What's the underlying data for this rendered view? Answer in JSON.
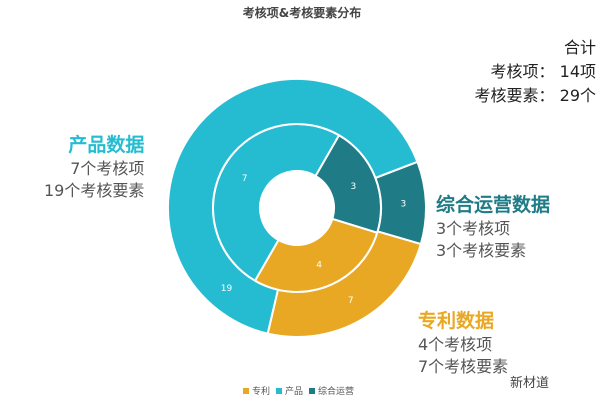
{
  "chart_data": {
    "type": "pie",
    "title": "考核项&考核要素分布",
    "categories": [
      "综合运营",
      "专利",
      "产品"
    ],
    "colors": {
      "综合运营": "#1f7c87",
      "专利": "#e9a824",
      "产品": "#25bcd2"
    },
    "series": [
      {
        "name": "考核项",
        "ring": "inner",
        "values": [
          3,
          4,
          7
        ]
      },
      {
        "name": "考核要素",
        "ring": "outer",
        "values": [
          3,
          7,
          19
        ]
      }
    ],
    "legend": {
      "position": "bottom",
      "items": [
        "专利",
        "产品",
        "综合运营"
      ]
    }
  },
  "totals": {
    "heading": "合计",
    "line1": "考核项： 14项",
    "line2": "考核要素： 29个"
  },
  "annotations": {
    "product": {
      "title": "产品数据",
      "l1": "7个考核项",
      "l2": "19个考核要素"
    },
    "ops": {
      "title": "综合运营数据",
      "l1": "3个考核项",
      "l2": "3个考核要素"
    },
    "patent": {
      "title": "专利数据",
      "l1": "4个考核项",
      "l2": "7个考核要素"
    }
  },
  "watermark": "新材道"
}
